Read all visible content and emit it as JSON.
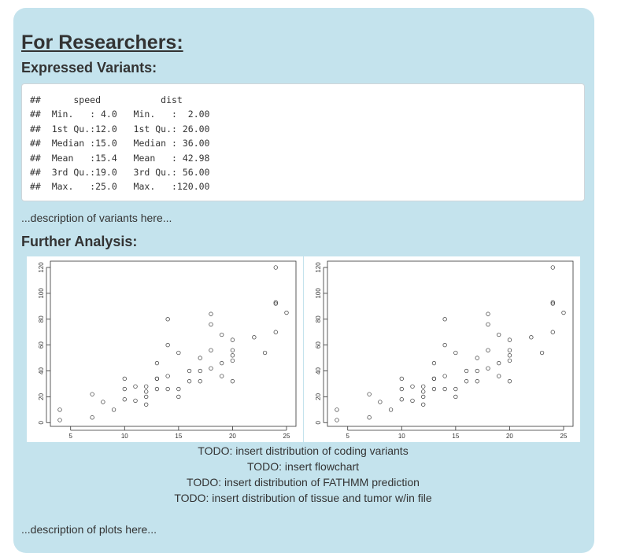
{
  "page": {
    "title": "For Researchers:",
    "section1": "Expressed Variants:",
    "summary_lines": [
      "##      speed           dist       ",
      "##  Min.   : 4.0   Min.   :  2.00  ",
      "##  1st Qu.:12.0   1st Qu.: 26.00  ",
      "##  Median :15.0   Median : 36.00  ",
      "##  Mean   :15.4   Mean   : 42.98  ",
      "##  3rd Qu.:19.0   3rd Qu.: 56.00  ",
      "##  Max.   :25.0   Max.   :120.00  "
    ],
    "variants_desc": "...description of variants here...",
    "section2": "Further Analysis:",
    "todos": [
      "TODO: insert distribution of coding variants",
      "TODO: insert flowchart",
      "TODO: insert distribution of FATHMM prediction",
      "TODO: insert distribution of tissue and tumor w/in file"
    ],
    "plots_desc": "...description of plots here..."
  },
  "chart_data": [
    {
      "type": "scatter",
      "xlabel": "",
      "ylabel": "",
      "xlim": [
        4,
        25
      ],
      "ylim": [
        2,
        120
      ],
      "xticks": [
        "5",
        "10",
        "15",
        "20",
        "25"
      ],
      "yticks": [
        "0",
        "20",
        "40",
        "60",
        "80",
        "100",
        "120"
      ],
      "grid": false,
      "x": [
        4,
        4,
        7,
        7,
        8,
        9,
        10,
        10,
        10,
        11,
        11,
        12,
        12,
        12,
        12,
        13,
        13,
        13,
        13,
        14,
        14,
        14,
        14,
        15,
        15,
        15,
        16,
        16,
        17,
        17,
        17,
        18,
        18,
        18,
        18,
        19,
        19,
        19,
        20,
        20,
        20,
        20,
        20,
        22,
        23,
        24,
        24,
        24,
        24,
        25
      ],
      "y": [
        2,
        10,
        4,
        22,
        16,
        10,
        18,
        26,
        34,
        17,
        28,
        14,
        20,
        24,
        28,
        26,
        34,
        34,
        46,
        26,
        36,
        60,
        80,
        20,
        26,
        54,
        32,
        40,
        32,
        40,
        50,
        42,
        56,
        76,
        84,
        36,
        46,
        68,
        32,
        48,
        52,
        56,
        64,
        66,
        54,
        70,
        92,
        93,
        120,
        85
      ]
    },
    {
      "type": "scatter",
      "xlabel": "",
      "ylabel": "",
      "xlim": [
        4,
        25
      ],
      "ylim": [
        2,
        120
      ],
      "xticks": [
        "5",
        "10",
        "15",
        "20",
        "25"
      ],
      "yticks": [
        "0",
        "20",
        "40",
        "60",
        "80",
        "100",
        "120"
      ],
      "grid": false,
      "x": [
        4,
        4,
        7,
        7,
        8,
        9,
        10,
        10,
        10,
        11,
        11,
        12,
        12,
        12,
        12,
        13,
        13,
        13,
        13,
        14,
        14,
        14,
        14,
        15,
        15,
        15,
        16,
        16,
        17,
        17,
        17,
        18,
        18,
        18,
        18,
        19,
        19,
        19,
        20,
        20,
        20,
        20,
        20,
        22,
        23,
        24,
        24,
        24,
        24,
        25
      ],
      "y": [
        2,
        10,
        4,
        22,
        16,
        10,
        18,
        26,
        34,
        17,
        28,
        14,
        20,
        24,
        28,
        26,
        34,
        34,
        46,
        26,
        36,
        60,
        80,
        20,
        26,
        54,
        32,
        40,
        32,
        40,
        50,
        42,
        56,
        76,
        84,
        36,
        46,
        68,
        32,
        48,
        52,
        56,
        64,
        66,
        54,
        70,
        92,
        93,
        120,
        85
      ]
    }
  ]
}
